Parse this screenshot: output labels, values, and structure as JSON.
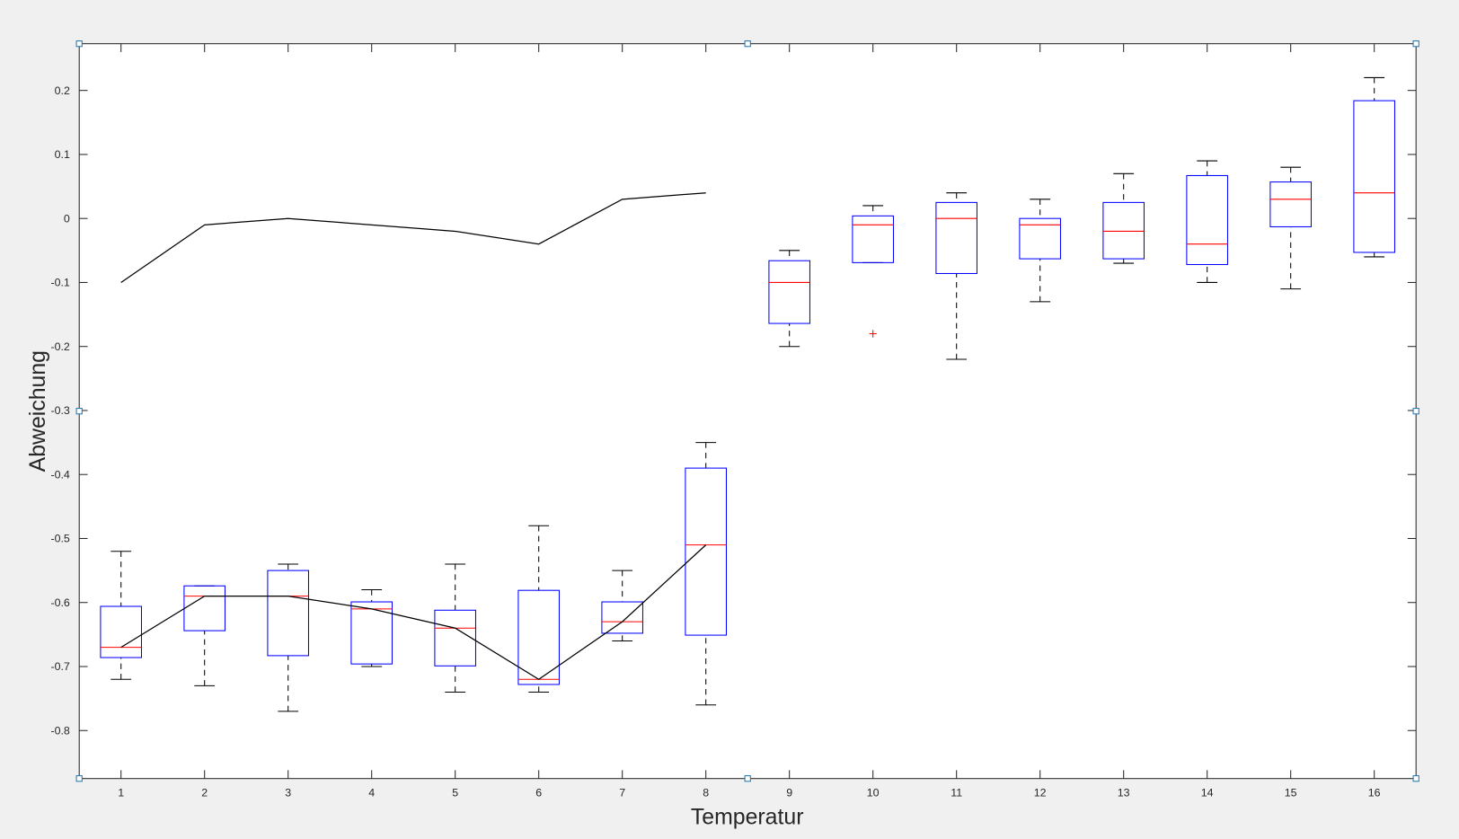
{
  "chart_data": {
    "type": "box",
    "x_label": "Temperatur",
    "y_label": "Abweichung",
    "xlim": [
      0.5,
      16.5
    ],
    "ylim": [
      -0.875,
      0.273
    ],
    "xticks": [
      1,
      2,
      3,
      4,
      5,
      6,
      7,
      8,
      9,
      10,
      11,
      12,
      13,
      14,
      15,
      16
    ],
    "yticks": [
      -0.8,
      -0.7,
      -0.6,
      -0.5,
      -0.4,
      -0.3,
      -0.2,
      -0.1,
      0,
      0.1,
      0.2
    ],
    "box_color": "#0000ff",
    "median_color": "#ff0000",
    "whisker_color": "#000000",
    "x": [
      1,
      2,
      3,
      4,
      5,
      6,
      7,
      8,
      9,
      10,
      11,
      12,
      13,
      14,
      15,
      16
    ],
    "boxes": [
      {
        "whisker_low": -0.72,
        "q1": -0.686,
        "median": -0.67,
        "q3": -0.606,
        "whisker_high": -0.52
      },
      {
        "whisker_low": -0.73,
        "q1": -0.644,
        "median": -0.59,
        "q3": -0.574,
        "whisker_high": -0.574
      },
      {
        "whisker_low": -0.77,
        "q1": -0.683,
        "median": -0.59,
        "q3": -0.55,
        "whisker_high": -0.54
      },
      {
        "whisker_low": -0.7,
        "q1": -0.696,
        "median": -0.61,
        "q3": -0.599,
        "whisker_high": -0.58
      },
      {
        "whisker_low": -0.74,
        "q1": -0.699,
        "median": -0.64,
        "q3": -0.612,
        "whisker_high": -0.54
      },
      {
        "whisker_low": -0.74,
        "q1": -0.728,
        "median": -0.72,
        "q3": -0.581,
        "whisker_high": -0.48
      },
      {
        "whisker_low": -0.66,
        "q1": -0.648,
        "median": -0.63,
        "q3": -0.599,
        "whisker_high": -0.55
      },
      {
        "whisker_low": -0.76,
        "q1": -0.651,
        "median": -0.51,
        "q3": -0.39,
        "whisker_high": -0.35
      },
      {
        "whisker_low": -0.2,
        "q1": -0.164,
        "median": -0.1,
        "q3": -0.066,
        "whisker_high": -0.05
      },
      {
        "whisker_low": -0.069,
        "q1": -0.069,
        "median": -0.01,
        "q3": 0.004,
        "whisker_high": 0.02,
        "outliers": [
          -0.18
        ]
      },
      {
        "whisker_low": -0.22,
        "q1": -0.086,
        "median": 0,
        "q3": 0.025,
        "whisker_high": 0.04
      },
      {
        "whisker_low": -0.13,
        "q1": -0.063,
        "median": -0.01,
        "q3": 0,
        "whisker_high": 0.03
      },
      {
        "whisker_low": -0.07,
        "q1": -0.063,
        "median": -0.02,
        "q3": 0.025,
        "whisker_high": 0.07
      },
      {
        "whisker_low": -0.1,
        "q1": -0.072,
        "median": -0.04,
        "q3": 0.067,
        "whisker_high": 0.09
      },
      {
        "whisker_low": -0.11,
        "q1": -0.013,
        "median": 0.03,
        "q3": 0.057,
        "whisker_high": 0.08
      },
      {
        "whisker_low": -0.06,
        "q1": -0.053,
        "median": 0.04,
        "q3": 0.184,
        "whisker_high": 0.22
      }
    ],
    "lines": [
      {
        "color": "#000000",
        "x": [
          1,
          2,
          3,
          4,
          5,
          6,
          7,
          8
        ],
        "values": [
          -0.1,
          -0.01,
          0,
          -0.01,
          -0.02,
          -0.04,
          0.03,
          0.04
        ]
      },
      {
        "color": "#000000",
        "x": [
          1,
          2,
          3,
          4,
          5,
          6,
          7,
          8
        ],
        "values": [
          -0.67,
          -0.59,
          -0.59,
          -0.61,
          -0.64,
          -0.72,
          -0.63,
          -0.51
        ]
      }
    ]
  }
}
